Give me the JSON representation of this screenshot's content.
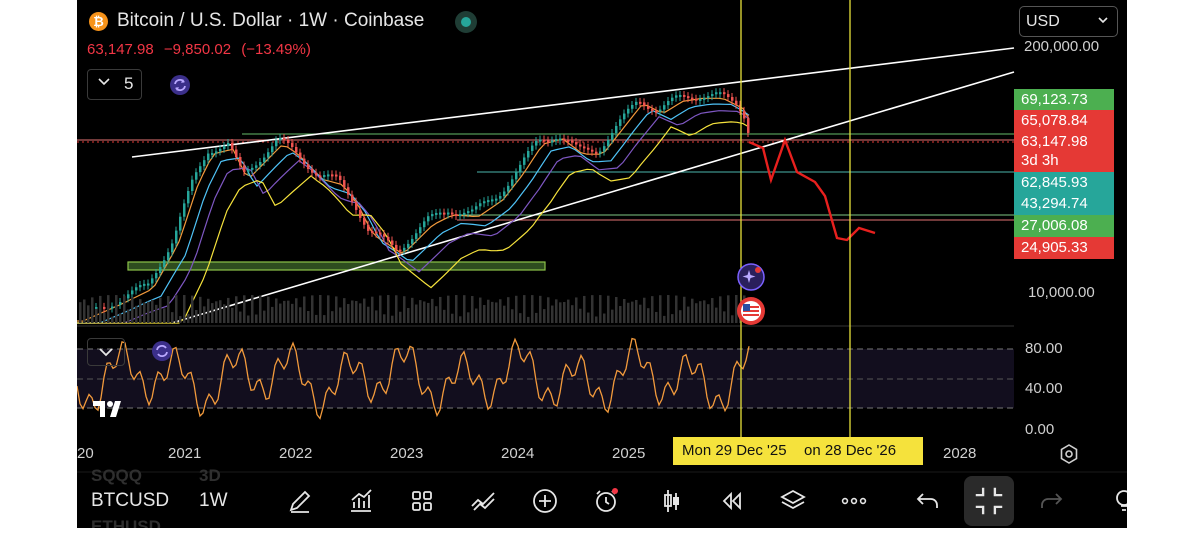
{
  "header": {
    "title": "Bitcoin / U.S. Dollar · 1W · Coinbase",
    "price": "63,147.98",
    "change": "−9,850.02",
    "change_pct": "(−13.49%)",
    "indicator_count": "5",
    "currency": "USD"
  },
  "price_axis": {
    "top_label": "200,000.00",
    "bottom_label": "10,000.00",
    "tags": [
      {
        "value": "69,123.73",
        "color": "#4caf50"
      },
      {
        "value": "65,078.84",
        "color": "#e53935"
      },
      {
        "value": "63,147.98",
        "color": "#e53935"
      },
      {
        "value": "3d 3h",
        "color": "#e53935"
      },
      {
        "value": "62,845.93",
        "color": "#26a69a"
      },
      {
        "value": "43,294.74",
        "color": "#26a69a"
      },
      {
        "value": "27,006.08",
        "color": "#4caf50"
      },
      {
        "value": "24,905.33",
        "color": "#e53935"
      }
    ]
  },
  "rsi_axis": {
    "labels": [
      "80.00",
      "40.00",
      "0.00"
    ]
  },
  "time_axis": {
    "years": [
      "20",
      "2021",
      "2022",
      "2023",
      "2024",
      "2025",
      "2028"
    ],
    "crosshair_dates": [
      "Mon 29 Dec '25",
      "on 28 Dec '26"
    ]
  },
  "toolbar": {
    "symbol": "BTCUSD",
    "interval": "1W",
    "ghost_top": "SQQQ",
    "ghost_top_interval": "3D",
    "ghost_bottom": "ETHUSD"
  },
  "colors": {
    "up": "#26a69a",
    "down": "#ef5350",
    "crosshair": "#e8e23a",
    "projection": "#e8201e",
    "rsi_line": "#f29a3c",
    "accent": "#7b61ff"
  }
}
